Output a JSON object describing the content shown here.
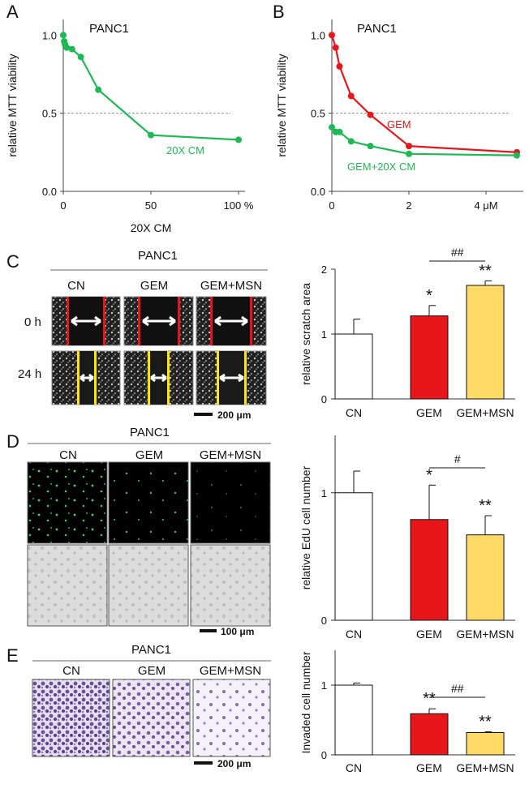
{
  "panels": {
    "A": {
      "letter": "A",
      "title": "PANC1"
    },
    "B": {
      "letter": "B",
      "title": "PANC1"
    },
    "C": {
      "letter": "C",
      "title": "PANC1",
      "col_labels": [
        "CN",
        "GEM",
        "GEM+MSN"
      ],
      "row_labels": [
        "0 h",
        "24 h"
      ],
      "scale": "200 μm"
    },
    "D": {
      "letter": "D",
      "title": "PANC1",
      "col_labels": [
        "CN",
        "GEM",
        "GEM+MSN"
      ],
      "scale": "100 μm"
    },
    "E": {
      "letter": "E",
      "title": "PANC1",
      "col_labels": [
        "CN",
        "GEM",
        "GEM+MSN"
      ],
      "scale": "200 μm"
    }
  },
  "colors": {
    "green": "#1db954",
    "red": "#e8161b",
    "yellow": "#ffd966",
    "white": "#ffffff"
  },
  "chart_data": [
    {
      "id": "A",
      "type": "line",
      "ylabel": "relative MTT viability",
      "xlabel": "20X CM",
      "xlim": [
        0,
        100
      ],
      "ylim": [
        0,
        1.1
      ],
      "xticks": [
        0,
        50,
        100
      ],
      "xtick_labels": [
        "0",
        "50",
        "100 %"
      ],
      "yticks": [
        0,
        0.5,
        1.0
      ],
      "ytick_labels": [
        "0.0",
        "0.5",
        "1.0"
      ],
      "reference_line": 0.5,
      "series": [
        {
          "name": "20X CM",
          "color": "#1db954",
          "x": [
            0,
            0.5,
            1,
            2,
            5,
            10,
            20,
            50,
            100
          ],
          "y": [
            1.0,
            0.96,
            0.94,
            0.92,
            0.91,
            0.86,
            0.65,
            0.36,
            0.33
          ]
        }
      ]
    },
    {
      "id": "B",
      "type": "line",
      "ylabel": "relative MTT viability",
      "xlabel": "",
      "xlim": [
        0,
        4.8
      ],
      "ylim": [
        0,
        1.1
      ],
      "xticks": [
        0,
        2,
        4
      ],
      "xtick_labels": [
        "0",
        "2",
        "4 μM"
      ],
      "yticks": [
        0,
        0.5,
        1.0
      ],
      "ytick_labels": [
        "0.0",
        "0.5",
        "1.0"
      ],
      "reference_line": 0.5,
      "series": [
        {
          "name": "GEM",
          "color": "#e8161b",
          "x": [
            0,
            0.1,
            0.2,
            0.5,
            1,
            2,
            4.8
          ],
          "y": [
            1.0,
            0.92,
            0.8,
            0.61,
            0.49,
            0.29,
            0.25
          ]
        },
        {
          "name": "GEM+20X CM",
          "color": "#1db954",
          "x": [
            0,
            0.1,
            0.2,
            0.5,
            1,
            2,
            4.8
          ],
          "y": [
            0.41,
            0.38,
            0.38,
            0.32,
            0.29,
            0.24,
            0.23
          ]
        }
      ]
    },
    {
      "id": "C",
      "type": "bar",
      "ylabel": "relative scratch area",
      "categories": [
        "CN",
        "GEM",
        "GEM+MSN"
      ],
      "values": [
        1.0,
        1.28,
        1.75
      ],
      "errors": [
        0.23,
        0.16,
        0.07
      ],
      "colors": [
        "#ffffff",
        "#e8161b",
        "#ffd966"
      ],
      "ylim": [
        0,
        2
      ],
      "yticks": [
        0,
        1,
        2
      ],
      "ytick_labels": [
        "0",
        "1",
        "2"
      ],
      "significance": [
        "",
        "*",
        "**"
      ],
      "bracket": {
        "from": 1,
        "to": 2,
        "label": "##"
      }
    },
    {
      "id": "D",
      "type": "bar",
      "ylabel": "relative EdU cell number",
      "categories": [
        "CN",
        "GEM",
        "GEM+MSN"
      ],
      "values": [
        1.0,
        0.79,
        0.67
      ],
      "errors": [
        0.17,
        0.27,
        0.15
      ],
      "colors": [
        "#ffffff",
        "#e8161b",
        "#ffd966"
      ],
      "ylim": [
        0,
        1.45
      ],
      "yticks": [
        0,
        1
      ],
      "ytick_labels": [
        "0",
        "1"
      ],
      "significance": [
        "",
        "*",
        "**"
      ],
      "bracket": {
        "from": 1,
        "to": 2,
        "label": "#"
      }
    },
    {
      "id": "E",
      "type": "bar",
      "ylabel": "Invaded cell number",
      "categories": [
        "CN",
        "GEM",
        "GEM+MSN"
      ],
      "values": [
        1.0,
        0.59,
        0.32
      ],
      "errors": [
        0.03,
        0.07,
        0.01
      ],
      "colors": [
        "#ffffff",
        "#e8161b",
        "#ffd966"
      ],
      "ylim": [
        0,
        1.5
      ],
      "yticks": [
        0,
        1
      ],
      "ytick_labels": [
        "0",
        "1"
      ],
      "significance": [
        "",
        "**",
        "**"
      ],
      "bracket": {
        "from": 1,
        "to": 2,
        "label": "##"
      }
    }
  ]
}
